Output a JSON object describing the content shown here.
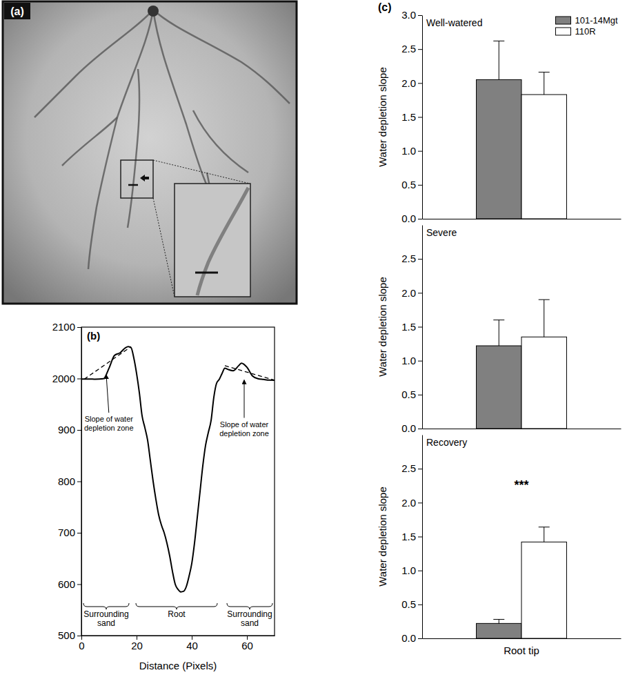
{
  "chart_data": [
    {
      "type": "image",
      "panel": "(a)"
    },
    {
      "type": "line",
      "panel": "(b)",
      "x_label": "Distance (Pixels)",
      "xlim": [
        0,
        70
      ],
      "xticks": [
        0,
        20,
        40,
        60
      ],
      "ylim": [
        500,
        2100
      ],
      "yticks": [
        500,
        600,
        700,
        800,
        900,
        2000,
        2100
      ],
      "series": [
        {
          "color": "#000000",
          "line_style": "solid",
          "x": [
            0,
            3,
            5,
            8,
            10,
            12,
            14,
            16,
            17,
            18,
            19,
            20,
            21,
            22,
            23,
            24,
            25,
            26,
            27,
            28,
            29,
            30,
            31,
            32,
            33,
            34,
            35,
            36,
            37,
            38,
            39,
            40,
            41,
            42,
            43,
            44,
            45,
            46,
            47,
            48,
            49,
            50,
            51,
            52,
            53,
            55,
            57,
            58,
            60,
            62,
            64,
            66,
            68,
            70
          ],
          "values": [
            1988,
            1990,
            1985,
            1995,
            2020,
            2045,
            2050,
            2060,
            2062,
            2060,
            2040,
            2010,
            1700,
            1200,
            950,
            880,
            840,
            800,
            765,
            735,
            715,
            700,
            680,
            655,
            625,
            600,
            590,
            585,
            586,
            595,
            615,
            640,
            680,
            730,
            780,
            830,
            870,
            895,
            1100,
            1600,
            1900,
            1985,
            2010,
            2020,
            2018,
            2015,
            2025,
            2030,
            2022,
            2005,
            1995,
            1980,
            1965,
            1962
          ]
        },
        {
          "color": "#000000",
          "line_style": "dashed",
          "x": [
            1,
            18
          ],
          "values": [
            1985,
            2062
          ]
        },
        {
          "color": "#000000",
          "line_style": "dashed",
          "x": [
            52,
            70
          ],
          "values": [
            2025,
            1965
          ]
        }
      ],
      "annotations": [
        {
          "text": "Slope of water depletion zone",
          "x": 9,
          "y": 2010
        },
        {
          "text": "Slope of water depletion zone",
          "x": 59,
          "y": 2000
        }
      ],
      "regions": [
        {
          "text": "Surrounding sand",
          "x": [
            0,
            18
          ]
        },
        {
          "text": "Root",
          "x": [
            19,
            50
          ]
        },
        {
          "text": "Surrounding sand",
          "x": [
            52,
            70
          ]
        }
      ]
    },
    {
      "type": "bar",
      "panel": "(c)",
      "title": "Well-watered",
      "y_label": "Water depletion slope",
      "categories": [
        null
      ],
      "ylim": [
        0,
        3
      ],
      "yticks": [
        {
          "value": 0,
          "label": "0.0"
        },
        {
          "value": 0.5,
          "label": "0.5"
        },
        {
          "value": 1,
          "label": "1.0"
        },
        {
          "value": 1.5,
          "label": "1.5"
        },
        {
          "value": 2,
          "label": "2.0"
        },
        {
          "value": 2.5,
          "label": "2.5"
        },
        {
          "value": 3,
          "label": "3.0"
        }
      ],
      "legend": "upper right",
      "series": [
        {
          "name": "101-14Mgt",
          "color": "#808080",
          "values": [
            2.05
          ],
          "errors": [
            0.57
          ]
        },
        {
          "name": "110R",
          "color": "#ffffff",
          "values": [
            1.83
          ],
          "errors": [
            0.33
          ]
        }
      ]
    },
    {
      "type": "bar",
      "title": "Severe",
      "y_label": "Water depletion slope",
      "categories": [
        null
      ],
      "ylim": [
        0,
        3
      ],
      "yticks": [
        {
          "value": 0,
          "label": "0.0"
        },
        {
          "value": 0.5,
          "label": "0.5"
        },
        {
          "value": 1,
          "label": "1.0"
        },
        {
          "value": 1.5,
          "label": "1.5"
        },
        {
          "value": 2,
          "label": "2.0"
        },
        {
          "value": 2.5,
          "label": "2.5"
        }
      ],
      "series": [
        {
          "color": "#808080",
          "values": [
            1.22
          ],
          "errors": [
            0.38
          ]
        },
        {
          "color": "#ffffff",
          "values": [
            1.35
          ],
          "errors": [
            0.55
          ]
        }
      ]
    },
    {
      "type": "bar",
      "title": "Recovery",
      "y_label": "Water depletion slope",
      "categories": [
        "Root tip"
      ],
      "ylim": [
        0,
        3
      ],
      "yticks": [
        {
          "value": 0,
          "label": "0.0"
        },
        {
          "value": 0.5,
          "label": "0.5"
        },
        {
          "value": 1,
          "label": "1.0"
        },
        {
          "value": 1.5,
          "label": "1.5"
        },
        {
          "value": 2,
          "label": "2.0"
        },
        {
          "value": 2.5,
          "label": "2.5"
        }
      ],
      "series": [
        {
          "color": "#808080",
          "values": [
            0.22
          ],
          "errors": [
            0.06
          ]
        },
        {
          "color": "#ffffff",
          "values": [
            1.42
          ],
          "errors": [
            0.22
          ]
        }
      ],
      "annotations": [
        {
          "text": "***",
          "x": "Root tip",
          "y": 2.2
        }
      ]
    }
  ]
}
